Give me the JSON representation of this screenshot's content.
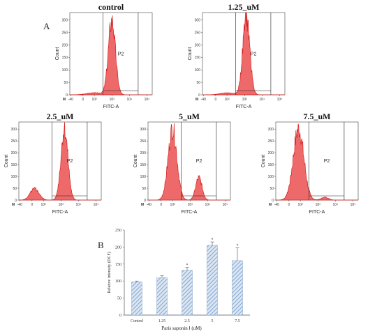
{
  "panel_labels": {
    "A": "A",
    "B": "B"
  },
  "chart_data": [
    {
      "type": "area",
      "title": "control",
      "xlabel": "FITC-A",
      "ylabel": "Count",
      "gate_label": "P2",
      "corner_label": "M",
      "y_ticks": [
        "0",
        "50",
        "100",
        "150",
        "200",
        "250",
        "300"
      ],
      "x_ticks": [
        "-40",
        "0",
        "10²",
        "10³",
        "10⁴",
        "10⁵"
      ],
      "ylim": [
        0,
        330
      ],
      "peaks": [
        {
          "center_log": 3.0,
          "height": 300,
          "width": 0.2
        },
        {
          "center_log": 2.0,
          "height": 8,
          "width": 0.45
        }
      ],
      "gate_range_log": [
        2.5,
        4.5
      ]
    },
    {
      "type": "area",
      "title": "1.25_uM",
      "xlabel": "FITC-A",
      "ylabel": "Count",
      "gate_label": "P2",
      "corner_label": "M",
      "y_ticks": [
        "0",
        "50",
        "100",
        "150",
        "200",
        "250",
        "300"
      ],
      "x_ticks": [
        "-40",
        "0",
        "10²",
        "10³",
        "10⁴",
        "10⁵"
      ],
      "ylim": [
        0,
        330
      ],
      "peaks": [
        {
          "center_log": 3.1,
          "height": 310,
          "width": 0.2
        },
        {
          "center_log": 2.0,
          "height": 8,
          "width": 0.4
        }
      ],
      "gate_range_log": [
        2.5,
        4.5
      ]
    },
    {
      "type": "area",
      "title": "2.5_uM",
      "xlabel": "FITC-A",
      "ylabel": "Count",
      "gate_label": "P2",
      "corner_label": "M",
      "y_ticks": [
        "0",
        "50",
        "100",
        "150",
        "200",
        "250",
        "300"
      ],
      "x_ticks": [
        "-40",
        "0",
        "10²",
        "10³",
        "10⁴",
        "10⁵"
      ],
      "ylim": [
        0,
        330
      ],
      "peaks": [
        {
          "center_log": 3.2,
          "height": 300,
          "width": 0.2
        },
        {
          "center_log": 1.5,
          "height": 48,
          "width": 0.25
        }
      ],
      "gate_range_log": [
        2.5,
        4.5
      ]
    },
    {
      "type": "area",
      "title": "5_uM",
      "xlabel": "FITC-A",
      "ylabel": "Count",
      "gate_label": "P2",
      "corner_label": "M",
      "y_ticks": [
        "0",
        "50",
        "100",
        "150",
        "200",
        "250",
        "300"
      ],
      "x_ticks": [
        "-40",
        "0",
        "10²",
        "10³",
        "10⁴",
        "10⁵"
      ],
      "ylim": [
        0,
        330
      ],
      "peaks": [
        {
          "center_log": 2.0,
          "height": 300,
          "width": 0.25
        },
        {
          "center_log": 3.5,
          "height": 95,
          "width": 0.18
        }
      ],
      "gate_range_log": [
        2.5,
        4.5
      ]
    },
    {
      "type": "area",
      "title": "7.5_uM",
      "xlabel": "FITC-A",
      "ylabel": "Count",
      "gate_label": "P2",
      "corner_label": "M",
      "y_ticks": [
        "0",
        "50",
        "100",
        "150",
        "200",
        "250",
        "300"
      ],
      "x_ticks": [
        "-40",
        "0",
        "10²",
        "10³",
        "10⁴",
        "10⁵"
      ],
      "ylim": [
        0,
        330
      ],
      "peaks": [
        {
          "center_log": 1.9,
          "height": 300,
          "width": 0.3
        },
        {
          "center_log": 3.4,
          "height": 12,
          "width": 0.2
        }
      ],
      "gate_range_log": [
        2.5,
        4.5
      ]
    },
    {
      "type": "bar",
      "categories": [
        "Control",
        "1.25",
        "2.5",
        "5",
        "7.5"
      ],
      "values": [
        98,
        110,
        132,
        205,
        160
      ],
      "errors": [
        2,
        6,
        8,
        10,
        38
      ],
      "significant": [
        false,
        false,
        true,
        true,
        true
      ],
      "marker": "*",
      "xlabel": "Paris saponin Ⅰ (uM)",
      "ylabel": "Relative intensity (DCF)",
      "ylim": [
        0,
        250
      ],
      "y_ticks": [
        0,
        50,
        100,
        150,
        200,
        250
      ],
      "color": "#8fb0d6"
    }
  ]
}
